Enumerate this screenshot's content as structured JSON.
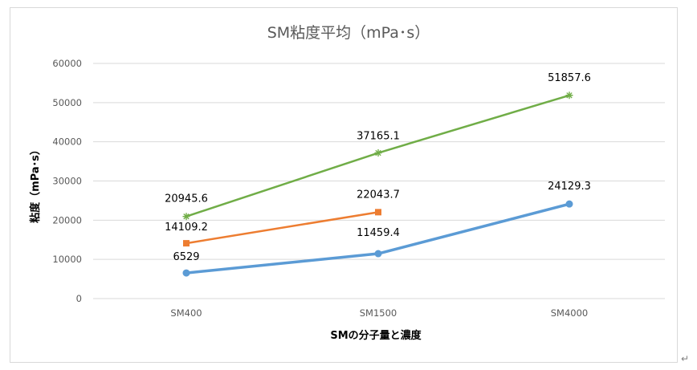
{
  "chart_data": {
    "type": "line",
    "title": "SM粘度平均（mPa･s）",
    "xlabel": "SMの分子量と濃度",
    "ylabel": "粘度（mPa･s）",
    "categories": [
      "SM400",
      "SM1500",
      "SM4000"
    ],
    "ylim": [
      0,
      60000
    ],
    "yticks": [
      "0",
      "10000",
      "20000",
      "30000",
      "40000",
      "50000",
      "60000"
    ],
    "grid": true,
    "legend": "none",
    "series": [
      {
        "values": [
          6529,
          11459.4,
          24129.3
        ],
        "labels": [
          "6529",
          "11459.4",
          "24129.3"
        ],
        "color": "#5b9bd5",
        "marker": "circle"
      },
      {
        "values": [
          14109.2,
          22043.7,
          null
        ],
        "labels": [
          "14109.2",
          "22043.7",
          ""
        ],
        "color": "#ed7d31",
        "marker": "square"
      },
      {
        "values": [
          20945.6,
          37165.1,
          51857.6
        ],
        "labels": [
          "20945.6",
          "37165.1",
          "51857.6"
        ],
        "color": "#70ad47",
        "marker": "star"
      }
    ]
  },
  "return_mark": "↵"
}
